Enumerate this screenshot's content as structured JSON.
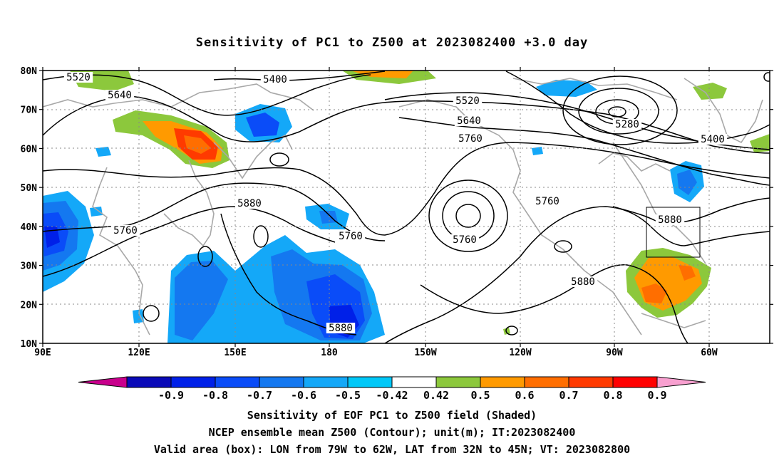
{
  "title": "Sensitivity of PC1 to Z500 at 2023082400 +3.0 day",
  "lat_ticks": [
    "80N",
    "70N",
    "60N",
    "50N",
    "40N",
    "30N",
    "20N",
    "10N"
  ],
  "lon_ticks": [
    "90E",
    "120E",
    "150E",
    "180",
    "150W",
    "120W",
    "90W",
    "60W"
  ],
  "contour_labels": [
    "5520",
    "5400",
    "5640",
    "5520",
    "5640",
    "5760",
    "5280",
    "5400",
    "5880",
    "5760",
    "5760",
    "5760",
    "5880",
    "5760",
    "5880",
    "5880"
  ],
  "colorbar": {
    "labels": [
      "-0.9",
      "-0.8",
      "-0.7",
      "-0.6",
      "-0.5",
      "-0.42",
      "0.42",
      "0.5",
      "0.6",
      "0.7",
      "0.8",
      "0.9"
    ],
    "colors": [
      "#0a0ab8",
      "#0020e8",
      "#0a4cf8",
      "#1478f0",
      "#14a8f8",
      "#00c8f8",
      "#ffffff",
      "#8cc83c",
      "#ff9a00",
      "#ff6e00",
      "#ff3a00",
      "#ff0000"
    ],
    "low_color": "#c8008c",
    "high_color": "#f8a0d0"
  },
  "captions": [
    "Sensitivity of EOF PC1 to Z500 field (Shaded)",
    "NCEP ensemble mean Z500 (Contour); unit(m); IT:2023082400",
    "Valid area (box): LON from 79W to 62W, LAT from 32N to 45N; VT: 2023082800"
  ]
}
